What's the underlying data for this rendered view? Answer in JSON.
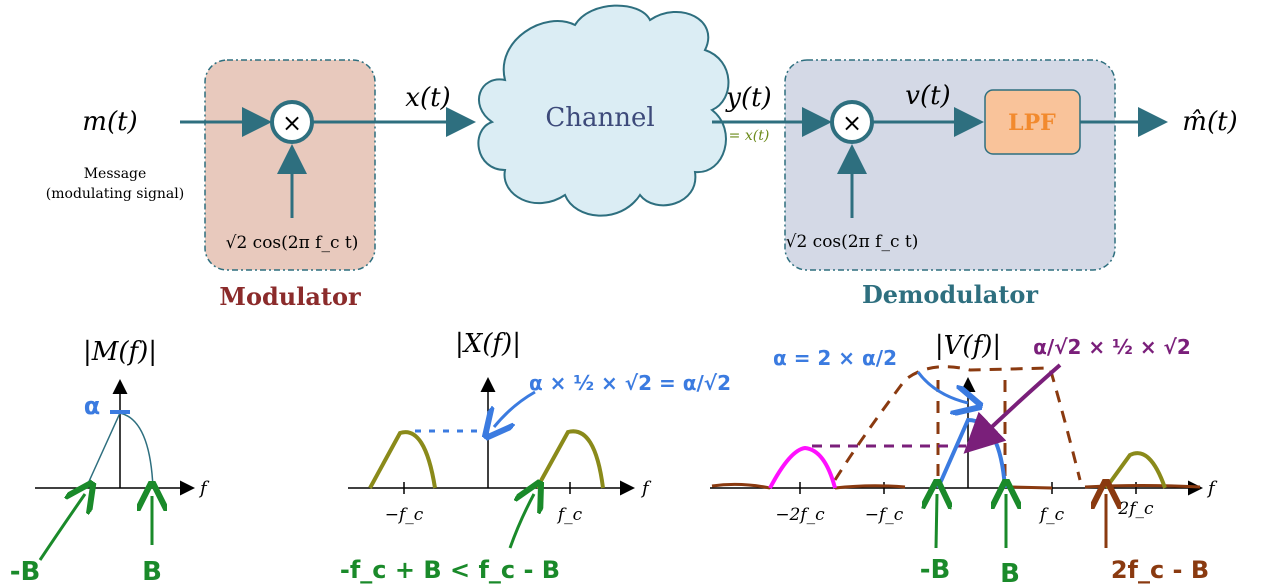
{
  "top": {
    "input_label": "m(t)",
    "message_line1": "Message",
    "message_line2": "(modulating signal)",
    "x_label": "x(t)",
    "channel_label": "Channel",
    "y_label": "y(t)",
    "y_equals": "= x(t)",
    "v_label": "v(t)",
    "lpf_label": "LPF",
    "output_label": "m̂(t)",
    "mod_carrier": "√2 cos(2π f_c t)",
    "demod_carrier": "√2 cos(2π f_c t)",
    "mod_title": "Modulator",
    "demod_title": "Demodulator",
    "mixer_symbol": "×"
  },
  "spectra": {
    "M": {
      "title": "|M(f)|",
      "axis": "f",
      "peak": "α",
      "note_left": "-B",
      "note_right": "B"
    },
    "X": {
      "title": "|X(f)|",
      "axis": "f",
      "tick_neg": "−f_c",
      "tick_pos": "f_c",
      "peak_note": "α × ½ × √2 = α/√2",
      "note_bottom": "-f_c + B  <  f_c - B"
    },
    "V": {
      "title": "|V(f)|",
      "axis": "f",
      "ticks": [
        "−2f_c",
        "−f_c",
        "f_c",
        "2f_c"
      ],
      "note_alpha": "α = 2 × α/2",
      "note_purple": "α/√2 × ½ × √2",
      "note_left": "-B",
      "note_mid": "B",
      "note_right": "2f_c - B"
    }
  },
  "colors": {
    "wire": "#2e6f7f",
    "modulator_fill": "#e8c9bd",
    "demodulator_fill": "#d4d9e6",
    "channel_fill": "#dbedf4",
    "lpf_fill": "#f9c39a",
    "lpf_text": "#f28a2e",
    "modulator_title": "#8b2b2b",
    "demodulator_title": "#2e6f7f",
    "olive": "#8a8a1a",
    "green": "#1a8a2a",
    "blue": "#3b7be0",
    "brown": "#8a3a10",
    "purple": "#7a1f7a",
    "magenta": "#ff10ff"
  }
}
